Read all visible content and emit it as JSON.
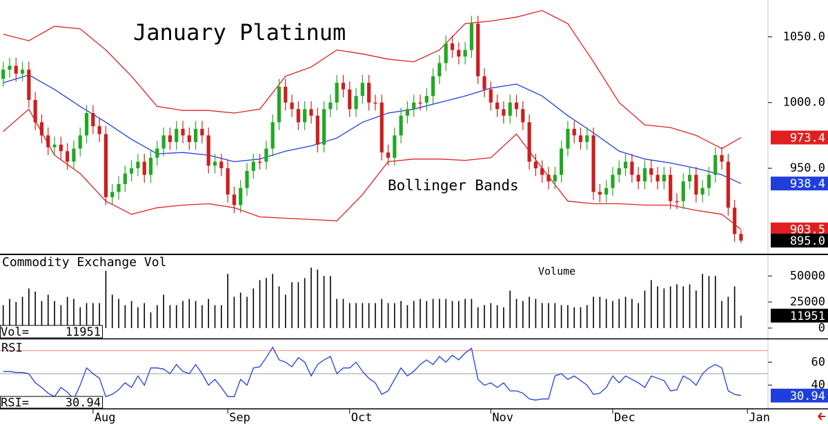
{
  "chart_data": [
    {
      "type": "candlestick",
      "title": "January Platinum",
      "annotation": "Bollinger Bands",
      "up_color": "#22a822",
      "down_color": "#cc1f1f",
      "open": [
        1018,
        1025,
        1028,
        1022,
        1025,
        1002,
        985,
        975,
        966,
        968,
        963,
        955,
        965,
        975,
        992,
        982,
        976,
        928,
        932,
        938,
        946,
        950,
        955,
        945,
        958,
        965,
        975,
        970,
        980,
        975,
        970,
        980,
        975,
        952,
        955,
        950,
        930,
        922,
        935,
        948,
        955,
        955,
        965,
        985,
        1012,
        1000,
        995,
        985,
        995,
        990,
        968,
        995,
        1000,
        1015,
        1010,
        995,
        1005,
        1015,
        1000,
        1000,
        962,
        958,
        975,
        990,
        995,
        1000,
        1000,
        1005,
        1020,
        1030,
        1045,
        1040,
        1035,
        1040,
        1060,
        1020,
        1010,
        1000,
        995,
        990,
        1000,
        995,
        985,
        955,
        950,
        945,
        940,
        945,
        965,
        980,
        975,
        970,
        975,
        932,
        930,
        935,
        945,
        950,
        955,
        945,
        940,
        950,
        945,
        940,
        945,
        925,
        925,
        940,
        945,
        930,
        935,
        945,
        960,
        955,
        920,
        900
      ],
      "high": [
        1031,
        1034,
        1034,
        1031,
        1031,
        1008,
        991,
        981,
        974,
        974,
        969,
        971,
        981,
        998,
        998,
        988,
        982,
        938,
        944,
        952,
        956,
        961,
        961,
        964,
        971,
        981,
        981,
        986,
        986,
        981,
        986,
        986,
        981,
        961,
        961,
        956,
        936,
        941,
        954,
        961,
        961,
        971,
        991,
        1018,
        1018,
        1006,
        1001,
        1001,
        1001,
        996,
        1001,
        1006,
        1021,
        1021,
        1016,
        1011,
        1021,
        1021,
        1006,
        1006,
        968,
        981,
        996,
        1001,
        1006,
        1006,
        1011,
        1026,
        1036,
        1051,
        1051,
        1046,
        1046,
        1066,
        1066,
        1026,
        1016,
        1006,
        1001,
        1006,
        1006,
        1001,
        991,
        961,
        956,
        951,
        951,
        971,
        986,
        986,
        981,
        981,
        981,
        938,
        941,
        951,
        956,
        961,
        961,
        951,
        956,
        956,
        951,
        951,
        951,
        931,
        946,
        951,
        951,
        941,
        951,
        966,
        966,
        961,
        926,
        903
      ],
      "low": [
        1012,
        1019,
        1016,
        1016,
        996,
        979,
        969,
        960,
        960,
        957,
        949,
        949,
        959,
        969,
        976,
        970,
        922,
        922,
        926,
        932,
        940,
        944,
        939,
        939,
        952,
        959,
        964,
        964,
        969,
        964,
        964,
        969,
        946,
        946,
        944,
        924,
        916,
        916,
        929,
        942,
        949,
        949,
        959,
        979,
        994,
        989,
        979,
        979,
        984,
        962,
        962,
        989,
        994,
        1004,
        989,
        989,
        999,
        994,
        994,
        956,
        952,
        952,
        969,
        984,
        989,
        994,
        994,
        999,
        1014,
        1024,
        1034,
        1029,
        1029,
        1034,
        1014,
        1004,
        994,
        989,
        984,
        984,
        989,
        979,
        949,
        944,
        939,
        934,
        934,
        939,
        959,
        969,
        964,
        964,
        926,
        924,
        924,
        929,
        939,
        944,
        939,
        934,
        934,
        939,
        934,
        934,
        919,
        919,
        919,
        934,
        924,
        924,
        929,
        939,
        949,
        914,
        894,
        893
      ],
      "close": [
        1025,
        1028,
        1022,
        1025,
        1002,
        985,
        975,
        966,
        968,
        963,
        955,
        965,
        975,
        992,
        982,
        976,
        928,
        932,
        938,
        946,
        950,
        955,
        945,
        958,
        965,
        975,
        970,
        980,
        975,
        970,
        980,
        975,
        952,
        955,
        950,
        930,
        922,
        935,
        948,
        955,
        955,
        965,
        985,
        1012,
        1000,
        995,
        985,
        995,
        990,
        968,
        995,
        1000,
        1015,
        1010,
        995,
        1005,
        1015,
        1000,
        1000,
        962,
        958,
        975,
        990,
        995,
        1000,
        1000,
        1005,
        1020,
        1030,
        1045,
        1040,
        1035,
        1040,
        1060,
        1020,
        1010,
        1000,
        995,
        990,
        1000,
        995,
        985,
        955,
        950,
        945,
        940,
        945,
        965,
        980,
        975,
        970,
        975,
        932,
        930,
        935,
        945,
        950,
        955,
        945,
        940,
        950,
        945,
        940,
        945,
        925,
        925,
        940,
        945,
        930,
        935,
        945,
        960,
        955,
        920,
        900,
        895
      ],
      "close_label": "895.0",
      "series": [
        {
          "color": "#e02020",
          "x": [
            0,
            4,
            8,
            12,
            16,
            20,
            24,
            28,
            32,
            36,
            40,
            44,
            48,
            52,
            56,
            60,
            64,
            68,
            72,
            76,
            80,
            84,
            88,
            92,
            96,
            100,
            104,
            108,
            112,
            115
          ],
          "values": [
            1052,
            1047,
            1058,
            1056,
            1040,
            1020,
            997,
            994,
            994,
            992,
            995,
            1020,
            1027,
            1040,
            1037,
            1033,
            1031,
            1040,
            1060,
            1062,
            1065,
            1070,
            1060,
            1031,
            1000,
            983,
            981,
            975,
            965,
            973.4
          ]
        },
        {
          "color": "#1f3fdd",
          "x": [
            0,
            4,
            8,
            12,
            16,
            20,
            24,
            28,
            32,
            36,
            40,
            44,
            48,
            52,
            56,
            60,
            64,
            68,
            72,
            76,
            80,
            84,
            88,
            92,
            96,
            100,
            104,
            108,
            112,
            115
          ],
          "values": [
            1015,
            1021,
            1010,
            997,
            985,
            972,
            961,
            962,
            960,
            955,
            957,
            963,
            967,
            973,
            985,
            992,
            995,
            1000,
            1005,
            1011,
            1014,
            1005,
            990,
            977,
            963,
            957,
            954,
            950,
            945,
            938.4
          ]
        },
        {
          "color": "#e02020",
          "x": [
            0,
            4,
            8,
            12,
            16,
            20,
            24,
            28,
            32,
            36,
            40,
            44,
            48,
            52,
            56,
            60,
            64,
            68,
            72,
            76,
            80,
            84,
            88,
            92,
            96,
            100,
            104,
            108,
            112,
            115
          ],
          "values": [
            978,
            995,
            960,
            946,
            925,
            915,
            920,
            922,
            923,
            920,
            913,
            912,
            911,
            910,
            930,
            955,
            957,
            957,
            956,
            958,
            976,
            950,
            925,
            923,
            923,
            922,
            922,
            918,
            915,
            903.5
          ]
        }
      ],
      "ylim": [
        885,
        1078
      ],
      "yticks": [
        {
          "value": 1050,
          "label": "1050.0"
        },
        {
          "value": 1000,
          "label": "1000.0"
        },
        {
          "value": 950,
          "label": "950.0"
        }
      ],
      "xlim": [
        -0.5,
        119.2
      ],
      "xticks": [
        {
          "value": 14,
          "label": "Aug"
        },
        {
          "value": 35,
          "label": "Sep"
        },
        {
          "value": 54,
          "label": "Oct"
        },
        {
          "value": 76,
          "label": "Nov"
        },
        {
          "value": 95,
          "label": "Dec"
        },
        {
          "value": 116,
          "label": "Jan"
        }
      ]
    },
    {
      "type": "bar",
      "title": "Commodity Exchange Vol",
      "annotation": "Volume",
      "value_prefix": "Vol=",
      "color": "#000000",
      "values": [
        22000,
        28000,
        25000,
        30000,
        38000,
        35000,
        26000,
        32000,
        26000,
        22000,
        30000,
        28000,
        20000,
        24000,
        24000,
        24000,
        55000,
        32000,
        28000,
        22000,
        26000,
        20000,
        24000,
        15000,
        22000,
        32000,
        22000,
        22000,
        26000,
        28000,
        26000,
        22000,
        28000,
        22000,
        22000,
        52000,
        30000,
        34000,
        30000,
        38000,
        46000,
        48000,
        52000,
        40000,
        32000,
        44000,
        44000,
        48000,
        58000,
        56000,
        50000,
        50000,
        28000,
        28000,
        24000,
        24000,
        24000,
        24000,
        24000,
        28000,
        24000,
        24000,
        26000,
        22000,
        26000,
        28000,
        26000,
        28000,
        28000,
        28000,
        26000,
        26000,
        28000,
        28000,
        20000,
        22000,
        24000,
        22000,
        20000,
        36000,
        28000,
        26000,
        30000,
        28000,
        24000,
        24000,
        24000,
        22000,
        22000,
        20000,
        20000,
        22000,
        30000,
        30000,
        28000,
        26000,
        28000,
        30000,
        28000,
        24000,
        36000,
        46000,
        40000,
        38000,
        40000,
        42000,
        40000,
        42000,
        36000,
        52000,
        50000,
        50000,
        26000,
        30000,
        40000,
        11951
      ],
      "ylim": [
        -10000,
        70000
      ],
      "yticks": [
        50000,
        25000,
        0
      ]
    },
    {
      "type": "line",
      "title": "RSI",
      "value_prefix": "RSI=",
      "color": "#1f3fdd",
      "values": [
        52,
        52,
        51,
        51,
        50,
        42,
        38,
        33,
        30,
        38,
        34,
        28,
        40,
        55,
        50,
        46,
        30,
        32,
        36,
        42,
        38,
        48,
        40,
        55,
        55,
        54,
        50,
        58,
        52,
        50,
        58,
        50,
        40,
        45,
        38,
        30,
        30,
        45,
        40,
        55,
        56,
        64,
        73,
        62,
        60,
        56,
        64,
        60,
        48,
        58,
        62,
        65,
        50,
        55,
        55,
        60,
        52,
        46,
        42,
        32,
        35,
        45,
        55,
        48,
        52,
        58,
        62,
        58,
        65,
        60,
        66,
        62,
        68,
        72,
        45,
        40,
        42,
        38,
        42,
        35,
        35,
        33,
        28,
        27,
        28,
        28,
        48,
        50,
        45,
        48,
        44,
        40,
        32,
        33,
        38,
        48,
        42,
        48,
        45,
        42,
        38,
        48,
        46,
        44,
        35,
        36,
        48,
        45,
        40,
        50,
        55,
        58,
        55,
        35,
        32,
        30.94
      ],
      "levels": [
        {
          "value": 70,
          "color": "#f08a7a"
        },
        {
          "value": 50,
          "color": "#9a9a9a"
        }
      ],
      "ylim": [
        20,
        80
      ],
      "yticks": [
        60,
        40
      ]
    }
  ]
}
